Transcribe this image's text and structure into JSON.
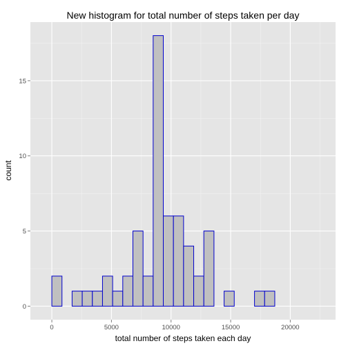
{
  "chart_data": {
    "type": "bar",
    "title": "New histogram for total number of steps taken per day",
    "xlabel": "total number of steps taken each day",
    "ylabel": "count",
    "xlim": [
      -1800,
      23800
    ],
    "ylim": [
      -0.9,
      18.9
    ],
    "x_ticks": [
      0,
      5000,
      10000,
      15000,
      20000
    ],
    "y_ticks": [
      0,
      5,
      10,
      15
    ],
    "x_minor_ticks": [
      2500,
      7500,
      12500,
      17500,
      22500
    ],
    "y_minor_ticks": [
      2.5,
      7.5,
      12.5,
      17.5
    ],
    "bin_width": 850,
    "bins": [
      {
        "x": -850,
        "count": 0
      },
      {
        "x": 0,
        "count": 2
      },
      {
        "x": 850,
        "count": 0
      },
      {
        "x": 1700,
        "count": 1
      },
      {
        "x": 2550,
        "count": 1
      },
      {
        "x": 3400,
        "count": 1
      },
      {
        "x": 4250,
        "count": 2
      },
      {
        "x": 5100,
        "count": 1
      },
      {
        "x": 5950,
        "count": 2
      },
      {
        "x": 6800,
        "count": 5
      },
      {
        "x": 7650,
        "count": 2
      },
      {
        "x": 8500,
        "count": 18
      },
      {
        "x": 9350,
        "count": 6
      },
      {
        "x": 10200,
        "count": 6
      },
      {
        "x": 11050,
        "count": 4
      },
      {
        "x": 11900,
        "count": 2
      },
      {
        "x": 12750,
        "count": 5
      },
      {
        "x": 13600,
        "count": 0
      },
      {
        "x": 14450,
        "count": 1
      },
      {
        "x": 15300,
        "count": 0
      },
      {
        "x": 16150,
        "count": 0
      },
      {
        "x": 17000,
        "count": 1
      },
      {
        "x": 17850,
        "count": 1
      },
      {
        "x": 18700,
        "count": 0
      },
      {
        "x": 19550,
        "count": 0
      },
      {
        "x": 20400,
        "count": 0
      }
    ],
    "grid": true,
    "colors": {
      "panel_background": "#e5e5e5",
      "grid_major": "#ffffff",
      "grid_minor": "#f2f2f2",
      "bar_fill": "#c0c0c0",
      "bar_outline": "#0000cd",
      "tick_text": "#4d4d4d"
    }
  }
}
